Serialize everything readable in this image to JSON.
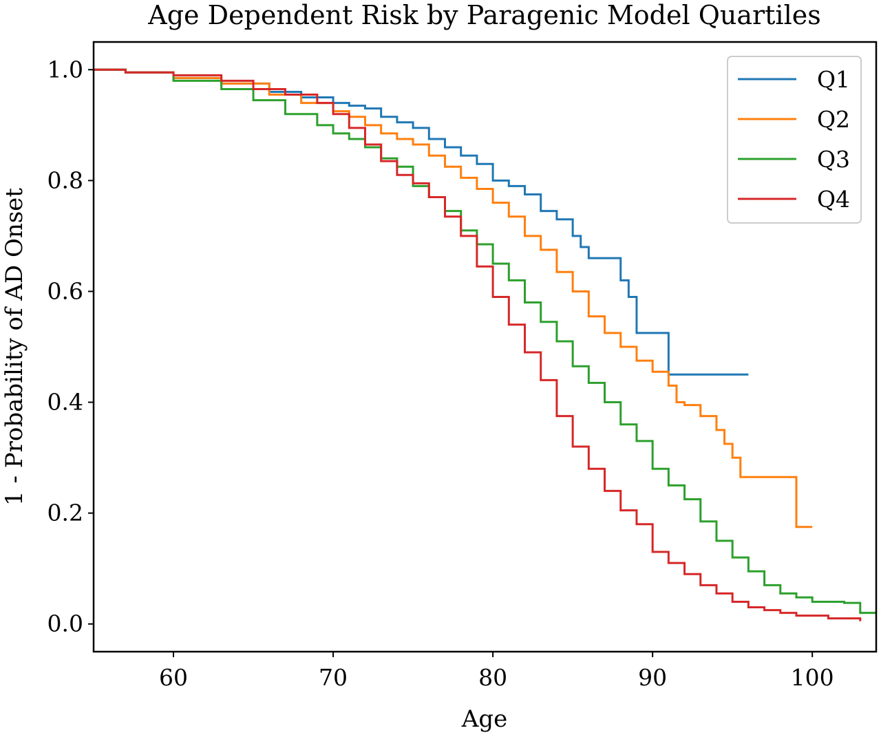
{
  "chart_data": {
    "type": "line",
    "step": "post",
    "title": "Age Dependent Risk by Paragenic Model Quartiles",
    "xlabel": "Age",
    "ylabel": "1 - Probability of AD Onset",
    "xlim": [
      55,
      104
    ],
    "ylim": [
      -0.05,
      1.05
    ],
    "xticks": [
      60,
      70,
      80,
      90,
      100
    ],
    "xtick_labels": [
      "60",
      "70",
      "80",
      "90",
      "100"
    ],
    "yticks": [
      0.0,
      0.2,
      0.4,
      0.6,
      0.8,
      1.0
    ],
    "ytick_labels": [
      "0.0",
      "0.2",
      "0.4",
      "0.6",
      "0.8",
      "1.0"
    ],
    "grid": false,
    "legend_position": "top-right",
    "series": [
      {
        "name": "Q1",
        "color": "#1f77b4",
        "points": [
          [
            55,
            1.0
          ],
          [
            57,
            0.995
          ],
          [
            60,
            0.985
          ],
          [
            63,
            0.975
          ],
          [
            66,
            0.96
          ],
          [
            68,
            0.95
          ],
          [
            70,
            0.94
          ],
          [
            71,
            0.935
          ],
          [
            72,
            0.93
          ],
          [
            73,
            0.915
          ],
          [
            74,
            0.905
          ],
          [
            75,
            0.895
          ],
          [
            76,
            0.875
          ],
          [
            77,
            0.86
          ],
          [
            78,
            0.845
          ],
          [
            79,
            0.83
          ],
          [
            80,
            0.8
          ],
          [
            81,
            0.79
          ],
          [
            82,
            0.775
          ],
          [
            83,
            0.745
          ],
          [
            84,
            0.73
          ],
          [
            85,
            0.7
          ],
          [
            85.5,
            0.68
          ],
          [
            86,
            0.66
          ],
          [
            88,
            0.62
          ],
          [
            88.5,
            0.59
          ],
          [
            89,
            0.525
          ],
          [
            91,
            0.45
          ],
          [
            96,
            0.45
          ]
        ]
      },
      {
        "name": "Q2",
        "color": "#ff7f0e",
        "points": [
          [
            55,
            1.0
          ],
          [
            57,
            0.995
          ],
          [
            60,
            0.985
          ],
          [
            63,
            0.975
          ],
          [
            66,
            0.955
          ],
          [
            68,
            0.94
          ],
          [
            70,
            0.925
          ],
          [
            71,
            0.915
          ],
          [
            72,
            0.9
          ],
          [
            73,
            0.885
          ],
          [
            74,
            0.875
          ],
          [
            75,
            0.865
          ],
          [
            76,
            0.845
          ],
          [
            77,
            0.825
          ],
          [
            78,
            0.805
          ],
          [
            79,
            0.785
          ],
          [
            80,
            0.76
          ],
          [
            81,
            0.735
          ],
          [
            82,
            0.7
          ],
          [
            83,
            0.675
          ],
          [
            84,
            0.635
          ],
          [
            85,
            0.6
          ],
          [
            86,
            0.555
          ],
          [
            87,
            0.525
          ],
          [
            88,
            0.5
          ],
          [
            89,
            0.475
          ],
          [
            90,
            0.455
          ],
          [
            91,
            0.43
          ],
          [
            91.5,
            0.4
          ],
          [
            92,
            0.395
          ],
          [
            93,
            0.375
          ],
          [
            94,
            0.35
          ],
          [
            94.5,
            0.325
          ],
          [
            95,
            0.3
          ],
          [
            95.5,
            0.265
          ],
          [
            99,
            0.175
          ],
          [
            100,
            0.175
          ]
        ]
      },
      {
        "name": "Q3",
        "color": "#2ca02c",
        "points": [
          [
            55,
            1.0
          ],
          [
            57,
            0.995
          ],
          [
            60,
            0.98
          ],
          [
            63,
            0.965
          ],
          [
            65,
            0.945
          ],
          [
            67,
            0.92
          ],
          [
            69,
            0.9
          ],
          [
            70,
            0.885
          ],
          [
            71,
            0.875
          ],
          [
            72,
            0.86
          ],
          [
            73,
            0.84
          ],
          [
            74,
            0.825
          ],
          [
            75,
            0.79
          ],
          [
            76,
            0.77
          ],
          [
            77,
            0.745
          ],
          [
            78,
            0.71
          ],
          [
            79,
            0.685
          ],
          [
            80,
            0.65
          ],
          [
            81,
            0.62
          ],
          [
            82,
            0.58
          ],
          [
            83,
            0.545
          ],
          [
            84,
            0.51
          ],
          [
            85,
            0.465
          ],
          [
            86,
            0.435
          ],
          [
            87,
            0.4
          ],
          [
            88,
            0.36
          ],
          [
            89,
            0.33
          ],
          [
            90,
            0.28
          ],
          [
            91,
            0.25
          ],
          [
            92,
            0.225
          ],
          [
            93,
            0.185
          ],
          [
            94,
            0.15
          ],
          [
            95,
            0.12
          ],
          [
            96,
            0.095
          ],
          [
            97,
            0.07
          ],
          [
            98,
            0.055
          ],
          [
            99,
            0.048
          ],
          [
            100,
            0.04
          ],
          [
            102,
            0.038
          ],
          [
            103,
            0.02
          ],
          [
            104,
            0.02
          ]
        ]
      },
      {
        "name": "Q4",
        "color": "#d62728",
        "points": [
          [
            55,
            1.0
          ],
          [
            57,
            0.995
          ],
          [
            60,
            0.99
          ],
          [
            63,
            0.98
          ],
          [
            65,
            0.965
          ],
          [
            67,
            0.955
          ],
          [
            69,
            0.94
          ],
          [
            70,
            0.92
          ],
          [
            71,
            0.895
          ],
          [
            72,
            0.865
          ],
          [
            73,
            0.835
          ],
          [
            74,
            0.81
          ],
          [
            75,
            0.795
          ],
          [
            76,
            0.77
          ],
          [
            77,
            0.735
          ],
          [
            78,
            0.7
          ],
          [
            79,
            0.645
          ],
          [
            80,
            0.59
          ],
          [
            81,
            0.54
          ],
          [
            82,
            0.49
          ],
          [
            83,
            0.44
          ],
          [
            84,
            0.375
          ],
          [
            85,
            0.32
          ],
          [
            86,
            0.28
          ],
          [
            87,
            0.24
          ],
          [
            88,
            0.205
          ],
          [
            89,
            0.18
          ],
          [
            90,
            0.13
          ],
          [
            91,
            0.11
          ],
          [
            92,
            0.09
          ],
          [
            93,
            0.07
          ],
          [
            94,
            0.055
          ],
          [
            95,
            0.04
          ],
          [
            96,
            0.03
          ],
          [
            97,
            0.025
          ],
          [
            98,
            0.02
          ],
          [
            99,
            0.015
          ],
          [
            101,
            0.01
          ],
          [
            103,
            0.005
          ]
        ]
      }
    ]
  }
}
